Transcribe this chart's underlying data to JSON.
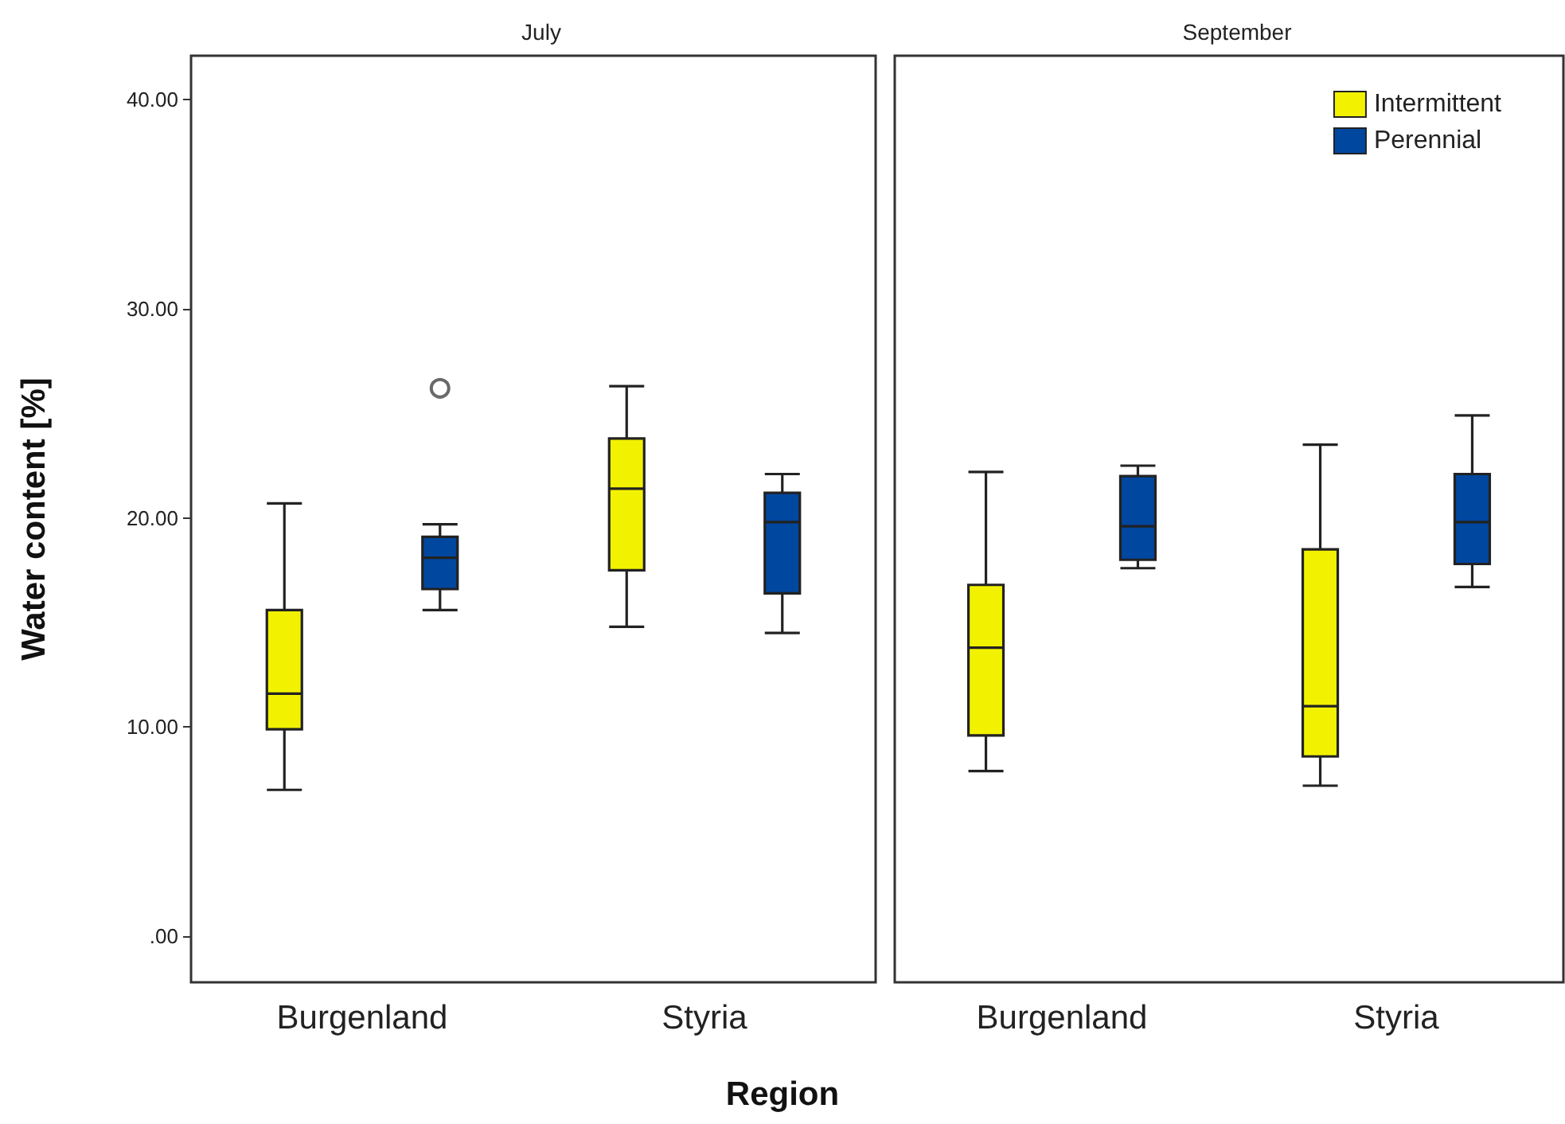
{
  "chart_data": [
    {
      "type": "box",
      "title": "July",
      "ylabel": "Water content [%]",
      "xlabel": "Region",
      "categories": [
        "Burgenland",
        "Styria"
      ],
      "ylim": [
        -2.2,
        42.1
      ],
      "yticks": [
        {
          "value": 0,
          "label": ".00"
        },
        {
          "value": 10,
          "label": "10.00"
        },
        {
          "value": 20,
          "label": "20.00"
        },
        {
          "value": 30,
          "label": "30.00"
        },
        {
          "value": 40,
          "label": "40.00"
        }
      ],
      "grid": false,
      "series": [
        {
          "color": "#f2f200",
          "boxes": [
            {
              "low": 7.0,
              "q1": 9.9,
              "median": 11.6,
              "q3": 15.6,
              "high": 20.7
            },
            {
              "low": 14.8,
              "q1": 17.5,
              "median": 21.4,
              "q3": 23.8,
              "high": 26.3
            }
          ]
        },
        {
          "color": "#0047a0",
          "boxes": [
            {
              "low": 15.6,
              "q1": 16.6,
              "median": 18.1,
              "q3": 19.1,
              "high": 19.7,
              "outliers": [
                26.2
              ]
            },
            {
              "low": 14.5,
              "q1": 16.4,
              "median": 19.8,
              "q3": 21.2,
              "high": 22.1
            }
          ]
        }
      ]
    },
    {
      "type": "box",
      "title": "September",
      "categories": [
        "Burgenland",
        "Styria"
      ],
      "ylim": [
        -2.2,
        42.1
      ],
      "grid": false,
      "tick_labels": "x",
      "legend": "top right",
      "series": [
        {
          "name": "Intermittent",
          "color": "#f2f200",
          "boxes": [
            {
              "low": 7.9,
              "q1": 9.6,
              "median": 13.8,
              "q3": 16.8,
              "high": 22.2
            },
            {
              "low": 7.2,
              "q1": 8.6,
              "median": 11.0,
              "q3": 18.5,
              "high": 23.5
            }
          ]
        },
        {
          "name": "Perennial",
          "color": "#0047a0",
          "boxes": [
            {
              "low": 17.6,
              "q1": 18.0,
              "median": 19.6,
              "q3": 22.0,
              "high": 22.5
            },
            {
              "low": 16.7,
              "q1": 17.8,
              "median": 19.8,
              "q3": 22.1,
              "high": 24.9
            }
          ]
        }
      ]
    }
  ]
}
